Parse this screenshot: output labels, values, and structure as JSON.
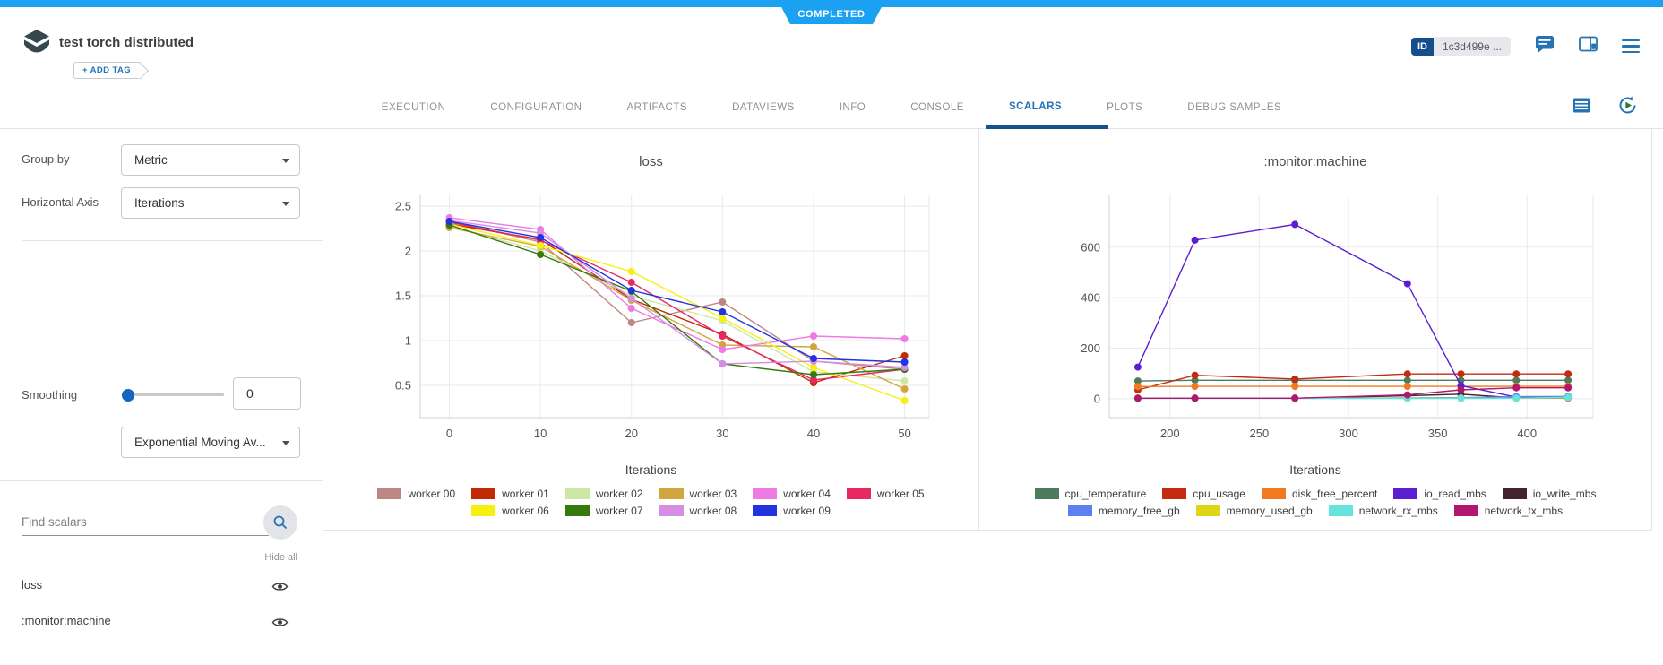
{
  "status_banner": {
    "label": "COMPLETED"
  },
  "header": {
    "title": "test torch distributed",
    "add_tag_label": "+ ADD TAG",
    "id_badge": {
      "label": "ID",
      "value": "1c3d499e ..."
    }
  },
  "icons": {
    "header_left": "experiment",
    "header_right": [
      "comments",
      "details-panel",
      "menu"
    ],
    "tab_bar_right": [
      "table-view",
      "auto-refresh"
    ],
    "sidebar": [
      "search",
      "eye",
      "eye"
    ]
  },
  "tabs": {
    "items": [
      {
        "label": "EXECUTION"
      },
      {
        "label": "CONFIGURATION"
      },
      {
        "label": "ARTIFACTS"
      },
      {
        "label": "DATAVIEWS"
      },
      {
        "label": "INFO"
      },
      {
        "label": "CONSOLE"
      },
      {
        "label": "SCALARS",
        "active": true
      },
      {
        "label": "PLOTS"
      },
      {
        "label": "DEBUG SAMPLES"
      }
    ]
  },
  "sidebar": {
    "group_by": {
      "label": "Group by",
      "value": "Metric"
    },
    "horizontal_axis": {
      "label": "Horizontal Axis",
      "value": "Iterations"
    },
    "smoothing": {
      "label": "Smoothing",
      "value": "0",
      "algorithm": "Exponential Moving Av..."
    },
    "search": {
      "placeholder": "Find scalars"
    },
    "hide_all_label": "Hide all",
    "metrics": [
      {
        "label": "loss"
      },
      {
        "label": ":monitor:machine"
      }
    ]
  },
  "colors": {
    "top_bar": "#1ba1f2",
    "accent_blue": "#2473b5",
    "id_badge": "#144e8c",
    "scroll_thumb": "#15538f",
    "slider_knob": "#1565c0"
  },
  "chart_data": [
    {
      "type": "line",
      "title": "loss",
      "xlabel": "Iterations",
      "grid": true,
      "legend_position": "bottom",
      "x": [
        0,
        10,
        20,
        30,
        40,
        50
      ],
      "xticks": [
        0,
        10,
        20,
        30,
        40,
        50
      ],
      "yticks": [
        0.5,
        1,
        1.5,
        2,
        2.5
      ],
      "xlim": [
        -3.2,
        52.7
      ],
      "ylim": [
        0.14,
        2.62
      ],
      "series": [
        {
          "name": "worker 00",
          "color": "#bd8682",
          "values": [
            2.33,
            2.1,
            1.2,
            1.43,
            0.77,
            0.68
          ]
        },
        {
          "name": "worker 01",
          "color": "#c12a05",
          "values": [
            2.3,
            2.13,
            1.46,
            1.07,
            0.53,
            0.83
          ]
        },
        {
          "name": "worker 02",
          "color": "#cde8a5",
          "values": [
            2.28,
            2.0,
            1.5,
            1.22,
            0.65,
            0.55
          ]
        },
        {
          "name": "worker 03",
          "color": "#d2a63f",
          "values": [
            2.26,
            2.05,
            1.45,
            0.95,
            0.93,
            0.46
          ]
        },
        {
          "name": "worker 04",
          "color": "#ee7ae2",
          "values": [
            2.37,
            2.24,
            1.36,
            0.9,
            1.05,
            1.02
          ]
        },
        {
          "name": "worker 05",
          "color": "#e82861",
          "values": [
            2.32,
            2.12,
            1.65,
            1.05,
            0.56,
            0.68
          ]
        },
        {
          "name": "worker 06",
          "color": "#f6f011",
          "values": [
            2.3,
            2.06,
            1.77,
            1.25,
            0.7,
            0.33
          ]
        },
        {
          "name": "worker 07",
          "color": "#36790c",
          "values": [
            2.29,
            1.96,
            1.55,
            0.74,
            0.62,
            0.68
          ]
        },
        {
          "name": "worker 08",
          "color": "#d78ce6",
          "values": [
            2.34,
            2.2,
            1.47,
            0.74,
            0.77,
            0.7
          ]
        },
        {
          "name": "worker 09",
          "color": "#2134e0",
          "values": [
            2.33,
            2.15,
            1.56,
            1.32,
            0.8,
            0.76
          ]
        }
      ]
    },
    {
      "type": "line",
      "title": ":monitor:machine",
      "xlabel": "Iterations",
      "grid": true,
      "legend_position": "bottom",
      "x": [
        182,
        214,
        270,
        333,
        363,
        394,
        423
      ],
      "xticks": [
        200,
        250,
        300,
        350,
        400
      ],
      "yticks": [
        0,
        200,
        400,
        600
      ],
      "xlim": [
        166,
        437
      ],
      "ylim": [
        -75,
        805
      ],
      "series": [
        {
          "name": "cpu_temperature",
          "color": "#4c7c5c",
          "values": [
            70,
            73,
            73,
            73,
            73,
            73,
            73
          ]
        },
        {
          "name": "cpu_usage",
          "color": "#c52b11",
          "values": [
            35,
            93,
            78,
            98,
            98,
            98,
            98
          ]
        },
        {
          "name": "disk_free_percent",
          "color": "#f2791f",
          "values": [
            48,
            49,
            49,
            49,
            49,
            49,
            49
          ]
        },
        {
          "name": "io_read_mbs",
          "color": "#5c1ed1",
          "values": [
            125,
            628,
            690,
            455,
            52,
            6,
            8
          ]
        },
        {
          "name": "io_write_mbs",
          "color": "#44242c",
          "values": [
            2,
            2,
            2,
            12,
            18,
            3,
            3
          ]
        },
        {
          "name": "memory_free_gb",
          "color": "#5d7ff0",
          "values": [
            2,
            2,
            2,
            3,
            4,
            8,
            9
          ]
        },
        {
          "name": "memory_used_gb",
          "color": "#dcd615",
          "values": [
            2,
            2,
            2,
            2,
            2,
            2,
            4
          ]
        },
        {
          "name": "network_rx_mbs",
          "color": "#66e3dc",
          "values": [
            1,
            1,
            1,
            1,
            1,
            2,
            6
          ]
        },
        {
          "name": "network_tx_mbs",
          "color": "#b2176f",
          "values": [
            2,
            2,
            2,
            15,
            35,
            43,
            43
          ]
        }
      ]
    }
  ]
}
